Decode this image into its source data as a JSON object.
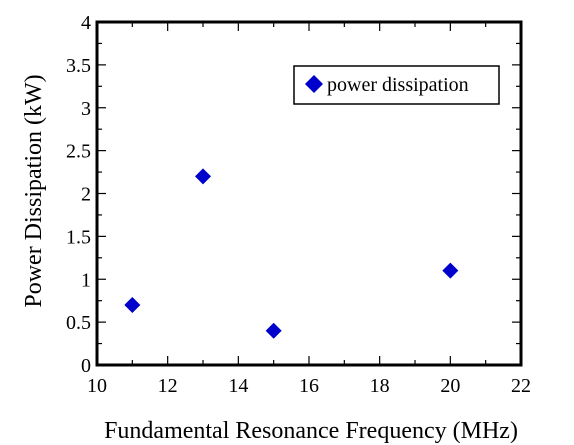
{
  "chart_data": {
    "type": "scatter",
    "xlabel": "Fundamental Resonance Frequency (MHz)",
    "ylabel": "Power Dissipation (kW)",
    "xlim": [
      10,
      22
    ],
    "ylim": [
      0,
      4
    ],
    "x_ticks": [
      10,
      12,
      14,
      16,
      18,
      20,
      22
    ],
    "y_ticks": [
      0,
      0.5,
      1,
      1.5,
      2,
      2.5,
      3,
      3.5,
      4
    ],
    "x_tick_labels": [
      "10",
      "12",
      "14",
      "16",
      "18",
      "20",
      "22"
    ],
    "y_tick_labels": [
      "0",
      "0.5",
      "1",
      "1.5",
      "2",
      "2.5",
      "3",
      "3.5",
      "4"
    ],
    "grid": false,
    "legend_position": "top-right",
    "series": [
      {
        "name": "power dissipation",
        "color": "#0000CC",
        "marker": "diamond",
        "points": [
          {
            "x": 11,
            "y": 0.7
          },
          {
            "x": 13,
            "y": 2.2
          },
          {
            "x": 15,
            "y": 0.4
          },
          {
            "x": 20,
            "y": 1.1
          }
        ]
      }
    ]
  }
}
